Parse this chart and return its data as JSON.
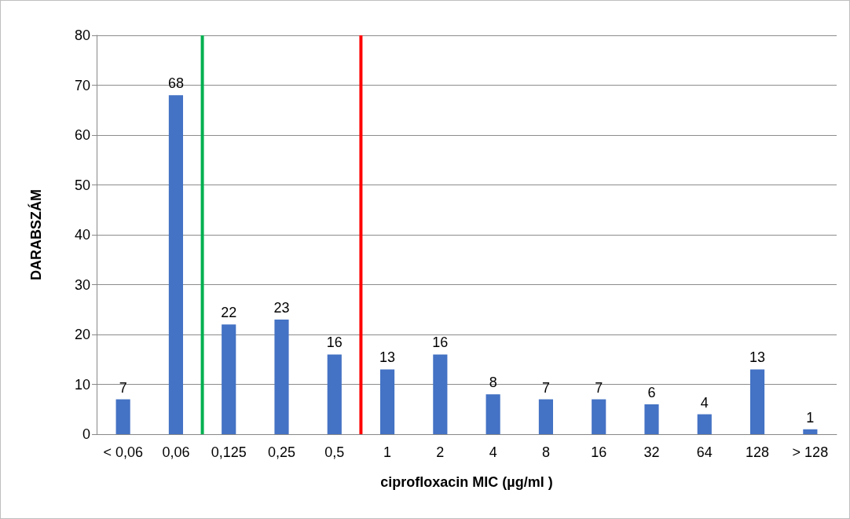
{
  "chart_data": {
    "type": "bar",
    "xlabel": "ciprofloxacin MIC (µg/ml )",
    "ylabel": "DARABSZÁM",
    "categories": [
      "< 0,06",
      "0,06",
      "0,125",
      "0,25",
      "0,5",
      "1",
      "2",
      "4",
      "8",
      "16",
      "32",
      "64",
      "128",
      "> 128"
    ],
    "values": [
      7,
      68,
      22,
      23,
      16,
      13,
      16,
      8,
      7,
      7,
      6,
      4,
      13,
      1
    ],
    "color": "#4472c4",
    "ylim": [
      0,
      80
    ],
    "yticks": [
      0,
      10,
      20,
      30,
      40,
      50,
      60,
      70,
      80
    ],
    "grid": "y",
    "data_labels": true,
    "ref_lines": [
      {
        "axis": "x",
        "value": "0,06",
        "color": "#00b050"
      },
      {
        "axis": "x",
        "value": "0,5",
        "color": "#ff0000"
      }
    ]
  }
}
